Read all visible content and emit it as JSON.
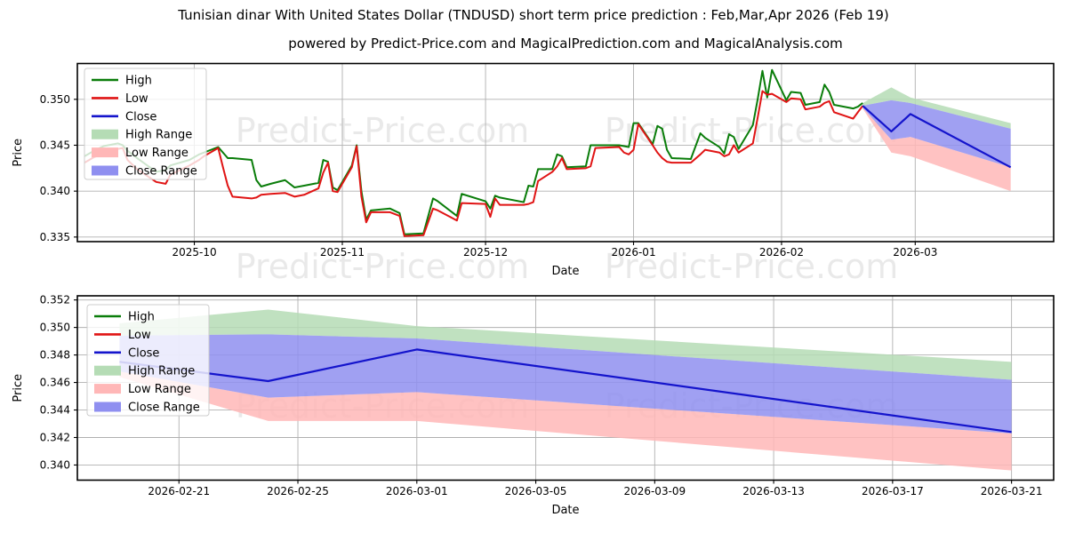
{
  "title": "Tunisian dinar With United States Dollar (TNDUSD) short term price prediction : Feb,Mar,Apr 2026 (Feb 19)",
  "subtitle": "powered by Predict-Price.com and MagicalPrediction.com and MagicalAnalysis.com",
  "watermark_text": "Predict-Price.com",
  "colors": {
    "high_line": "#0a7d0a",
    "low_line": "#e01414",
    "close_line": "#1414cc",
    "high_range_fill": "#b5dcb5",
    "low_range_fill": "#ffb7b7",
    "close_range_fill": "#8f8ff0",
    "grid": "#b0b0b0",
    "spine": "#000000",
    "watermark": "#e2e2e2",
    "legend_border": "#cccccc",
    "text": "#000000"
  },
  "chart_data": [
    {
      "name": "history-with-forecast",
      "type": "line",
      "xlabel": "Date",
      "ylabel": "Price",
      "ylim": [
        0.3345,
        0.3539
      ],
      "xlim": [
        "2025-09-06T12:00:00Z",
        "2026-03-30T00:00:00Z"
      ],
      "grid": true,
      "legend_position": "upper left",
      "legend": [
        "High",
        "Low",
        "Close",
        "High Range",
        "Low Range",
        "Close Range"
      ],
      "yticks": [
        {
          "v": 0.335,
          "label": "0.335"
        },
        {
          "v": 0.34,
          "label": "0.340"
        },
        {
          "v": 0.345,
          "label": "0.345"
        },
        {
          "v": 0.35,
          "label": "0.350"
        }
      ],
      "xticks": [
        {
          "date": "2025-10-01",
          "label": "2025-10"
        },
        {
          "date": "2025-11-01",
          "label": "2025-11"
        },
        {
          "date": "2025-12-01",
          "label": "2025-12"
        },
        {
          "date": "2026-01-01",
          "label": "2026-01"
        },
        {
          "date": "2026-02-01",
          "label": "2026-02"
        },
        {
          "date": "2026-03-01",
          "label": "2026-03"
        }
      ],
      "history": {
        "dates": [
          "2025-09-08",
          "2025-09-10",
          "2025-09-12",
          "2025-09-15",
          "2025-09-16",
          "2025-09-17",
          "2025-09-19",
          "2025-09-23",
          "2025-09-25",
          "2025-09-26",
          "2025-09-30",
          "2025-10-02",
          "2025-10-03",
          "2025-10-06",
          "2025-10-07",
          "2025-10-08",
          "2025-10-09",
          "2025-10-13",
          "2025-10-14",
          "2025-10-15",
          "2025-10-17",
          "2025-10-20",
          "2025-10-22",
          "2025-10-24",
          "2025-10-27",
          "2025-10-28",
          "2025-10-29",
          "2025-10-30",
          "2025-10-31",
          "2025-11-03",
          "2025-11-04",
          "2025-11-05",
          "2025-11-06",
          "2025-11-07",
          "2025-11-11",
          "2025-11-13",
          "2025-11-14",
          "2025-11-18",
          "2025-11-20",
          "2025-11-21",
          "2025-11-25",
          "2025-11-26",
          "2025-12-01",
          "2025-12-02",
          "2025-12-03",
          "2025-12-04",
          "2025-12-09",
          "2025-12-10",
          "2025-12-11",
          "2025-12-12",
          "2025-12-15",
          "2025-12-16",
          "2025-12-17",
          "2025-12-18",
          "2025-12-22",
          "2025-12-23",
          "2025-12-24",
          "2025-12-29",
          "2025-12-30",
          "2025-12-31",
          "2026-01-01",
          "2026-01-02",
          "2026-01-05",
          "2026-01-06",
          "2026-01-07",
          "2026-01-08",
          "2026-01-09",
          "2026-01-13",
          "2026-01-15",
          "2026-01-16",
          "2026-01-19",
          "2026-01-20",
          "2026-01-21",
          "2026-01-22",
          "2026-01-23",
          "2026-01-26",
          "2026-01-27",
          "2026-01-28",
          "2026-01-29",
          "2026-01-30",
          "2026-02-02",
          "2026-02-03",
          "2026-02-05",
          "2026-02-06",
          "2026-02-09",
          "2026-02-10",
          "2026-02-11",
          "2026-02-12",
          "2026-02-16",
          "2026-02-17",
          "2026-02-18"
        ],
        "high": [
          0.3438,
          0.3444,
          0.3449,
          0.3452,
          0.345,
          0.3444,
          0.3436,
          0.3421,
          0.3423,
          0.3428,
          0.3434,
          0.344,
          0.3442,
          0.3448,
          0.3442,
          0.3436,
          0.3436,
          0.3434,
          0.3412,
          0.3405,
          0.3408,
          0.3412,
          0.3404,
          0.3406,
          0.3409,
          0.3434,
          0.3432,
          0.3404,
          0.3401,
          0.3428,
          0.345,
          0.34,
          0.3369,
          0.3379,
          0.3381,
          0.3376,
          0.3353,
          0.3354,
          0.3392,
          0.3389,
          0.3373,
          0.3397,
          0.3389,
          0.3381,
          0.3395,
          0.3393,
          0.3388,
          0.3406,
          0.3405,
          0.3424,
          0.3424,
          0.344,
          0.3438,
          0.3426,
          0.3427,
          0.345,
          0.345,
          0.345,
          0.3449,
          0.3448,
          0.3474,
          0.3474,
          0.3451,
          0.3471,
          0.3468,
          0.3445,
          0.3436,
          0.3435,
          0.3463,
          0.3458,
          0.3448,
          0.3441,
          0.3462,
          0.3459,
          0.3446,
          0.3472,
          0.35,
          0.3531,
          0.3502,
          0.3532,
          0.3499,
          0.3508,
          0.3507,
          0.3494,
          0.3497,
          0.3516,
          0.3508,
          0.3494,
          0.349,
          0.3492,
          0.3496
        ],
        "low": [
          0.3431,
          0.3437,
          0.3441,
          0.3446,
          0.3447,
          0.3434,
          0.3424,
          0.341,
          0.3408,
          0.3418,
          0.3428,
          0.3434,
          0.3438,
          0.3447,
          0.3426,
          0.3406,
          0.3394,
          0.3392,
          0.3393,
          0.3396,
          0.3397,
          0.3398,
          0.3394,
          0.3396,
          0.3403,
          0.342,
          0.3431,
          0.34,
          0.3399,
          0.3426,
          0.3449,
          0.3394,
          0.3366,
          0.3377,
          0.3377,
          0.3373,
          0.3351,
          0.3352,
          0.3381,
          0.3379,
          0.3368,
          0.3387,
          0.3386,
          0.3372,
          0.3392,
          0.3385,
          0.3385,
          0.3386,
          0.3388,
          0.3411,
          0.3421,
          0.3427,
          0.3436,
          0.3424,
          0.3425,
          0.3427,
          0.3447,
          0.3448,
          0.3442,
          0.344,
          0.3445,
          0.3473,
          0.345,
          0.3442,
          0.3436,
          0.3432,
          0.3431,
          0.3431,
          0.344,
          0.3445,
          0.3442,
          0.3438,
          0.344,
          0.345,
          0.3442,
          0.3452,
          0.348,
          0.3509,
          0.3505,
          0.3506,
          0.3497,
          0.3501,
          0.35,
          0.3489,
          0.3492,
          0.3496,
          0.3498,
          0.3486,
          0.3479,
          0.3486,
          0.3493
        ]
      },
      "forecast": {
        "dates": [
          "2026-02-18",
          "2026-02-24",
          "2026-02-28",
          "2026-03-21"
        ],
        "close": [
          0.3493,
          0.3465,
          0.3484,
          0.3426
        ],
        "bands": {
          "high": {
            "top": [
              0.3496,
              0.3513,
              0.3502,
              0.3474
            ],
            "bottom": [
              0.3493,
              0.3499,
              0.3496,
              0.3468
            ]
          },
          "close": {
            "top": [
              0.3493,
              0.3499,
              0.3496,
              0.3468
            ],
            "bottom": [
              0.3491,
              0.3456,
              0.3459,
              0.3426
            ]
          },
          "low": {
            "top": [
              0.3491,
              0.3456,
              0.3459,
              0.3426
            ],
            "bottom": [
              0.349,
              0.3442,
              0.3438,
              0.34
            ]
          }
        }
      }
    },
    {
      "name": "forecast-detail",
      "type": "line",
      "xlabel": "Date",
      "ylabel": "Price",
      "ylim": [
        0.3389,
        0.3523
      ],
      "xlim": [
        "2026-02-17T14:00:00Z",
        "2026-03-22T10:00:00Z"
      ],
      "grid": true,
      "legend_position": "upper left",
      "legend": [
        "High",
        "Low",
        "Close",
        "High Range",
        "Low Range",
        "Close Range"
      ],
      "yticks": [
        {
          "v": 0.34,
          "label": "0.340"
        },
        {
          "v": 0.342,
          "label": "0.342"
        },
        {
          "v": 0.344,
          "label": "0.344"
        },
        {
          "v": 0.346,
          "label": "0.346"
        },
        {
          "v": 0.348,
          "label": "0.348"
        },
        {
          "v": 0.35,
          "label": "0.350"
        },
        {
          "v": 0.352,
          "label": "0.352"
        }
      ],
      "xticks": [
        {
          "date": "2026-02-21",
          "label": "2026-02-21"
        },
        {
          "date": "2026-02-25",
          "label": "2026-02-25"
        },
        {
          "date": "2026-03-01",
          "label": "2026-03-01"
        },
        {
          "date": "2026-03-05",
          "label": "2026-03-05"
        },
        {
          "date": "2026-03-09",
          "label": "2026-03-09"
        },
        {
          "date": "2026-03-13",
          "label": "2026-03-13"
        },
        {
          "date": "2026-03-17",
          "label": "2026-03-17"
        },
        {
          "date": "2026-03-21",
          "label": "2026-03-21"
        }
      ],
      "forecast": {
        "dates": [
          "2026-02-19",
          "2026-02-24",
          "2026-03-01",
          "2026-03-21"
        ],
        "close": [
          0.3475,
          0.3461,
          0.3484,
          0.3424
        ],
        "bands": {
          "high": {
            "top": [
              0.3503,
              0.3513,
              0.3501,
              0.3475
            ],
            "bottom": [
              0.3494,
              0.3495,
              0.3492,
              0.3462
            ]
          },
          "close": {
            "top": [
              0.3494,
              0.3495,
              0.3492,
              0.3462
            ],
            "bottom": [
              0.3468,
              0.3449,
              0.3453,
              0.3423
            ]
          },
          "low": {
            "top": [
              0.3468,
              0.3449,
              0.3453,
              0.3423
            ],
            "bottom": [
              0.3464,
              0.3432,
              0.3432,
              0.3396
            ]
          }
        }
      }
    }
  ]
}
